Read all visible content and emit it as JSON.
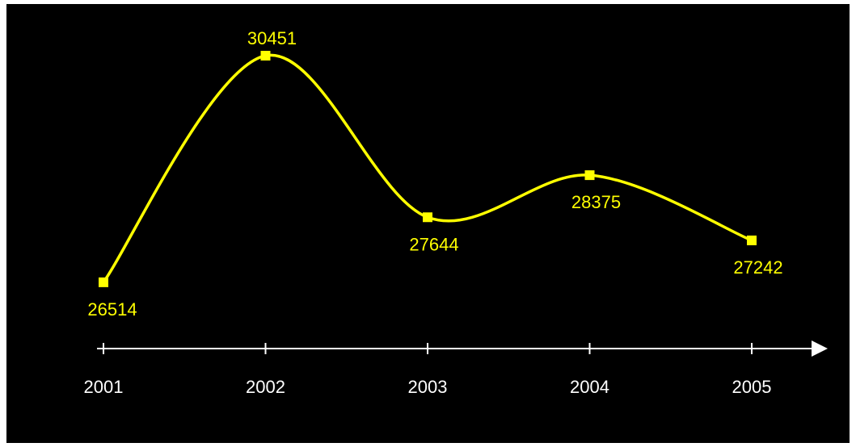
{
  "chart_data": {
    "type": "line",
    "x": [
      "2001",
      "2002",
      "2003",
      "2004",
      "2005"
    ],
    "series": [
      {
        "values": [
          26514,
          30451,
          27644,
          28375,
          27242
        ]
      }
    ],
    "data_labels": [
      "26514",
      "30451",
      "27644",
      "28375",
      "27242"
    ],
    "title": "",
    "xlabel": "",
    "ylabel": "",
    "smooth": true,
    "grid": false,
    "line_color": "#ffff00",
    "background_color": "#000000",
    "axis_color": "#ffffff",
    "text_color": "#ffffff"
  }
}
